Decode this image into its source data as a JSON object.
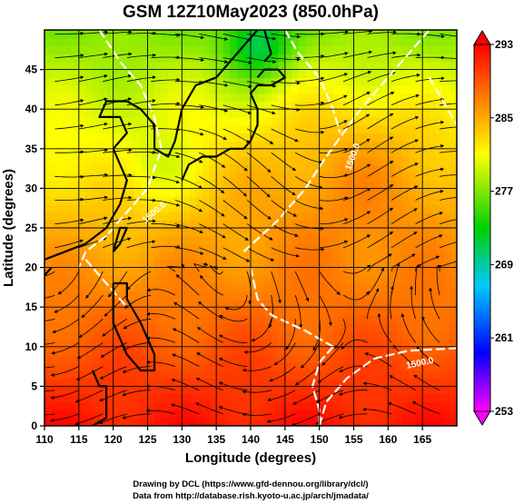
{
  "chart_data": {
    "type": "heatmap",
    "title": "GSM 12Z10May2023 (850.0hPa)",
    "xlabel": "Longitude (degrees)",
    "ylabel": "Latitude  (degrees)",
    "xlim": [
      110,
      170
    ],
    "ylim": [
      0,
      50
    ],
    "x_ticks": [
      110,
      115,
      120,
      125,
      130,
      135,
      140,
      145,
      150,
      155,
      160,
      165
    ],
    "y_ticks": [
      0,
      5,
      10,
      15,
      20,
      25,
      30,
      35,
      40,
      45
    ],
    "grid": "on (5-degree lines)",
    "colorbar": {
      "position": "right",
      "range": [
        253,
        293
      ],
      "ticks": [
        293,
        285,
        277,
        269,
        261,
        253
      ],
      "colors": [
        "#ff00ff",
        "#0000ff",
        "#00c8ff",
        "#00d000",
        "#ffff00",
        "#ff8000",
        "#ff0000"
      ]
    },
    "contour_labels": [
      "1500.0",
      "1500.0",
      "1500.0"
    ],
    "overlay": "streamlines (wind), white geopotential contours, coastlines"
  },
  "credits": {
    "line1": "Drawing by DCL (https://www.gfd-dennou.org/library/dcl/)",
    "line2": "Data from http://database.rish.kyoto-u.ac.jp/arch/jmadata/"
  }
}
